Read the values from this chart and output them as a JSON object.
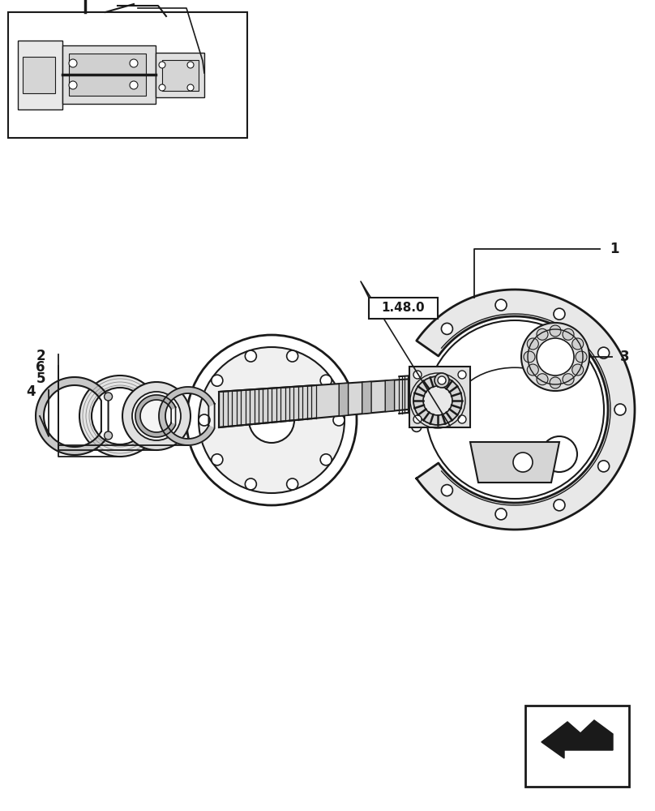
{
  "background_color": "#ffffff",
  "ref_label": "1.48.0",
  "part_numbers": [
    "1",
    "2",
    "3",
    "4",
    "5",
    "6"
  ],
  "dark": "#1a1a1a",
  "gray": "#888888",
  "light_gray": "#cccccc",
  "mid_gray": "#aaaaaa"
}
